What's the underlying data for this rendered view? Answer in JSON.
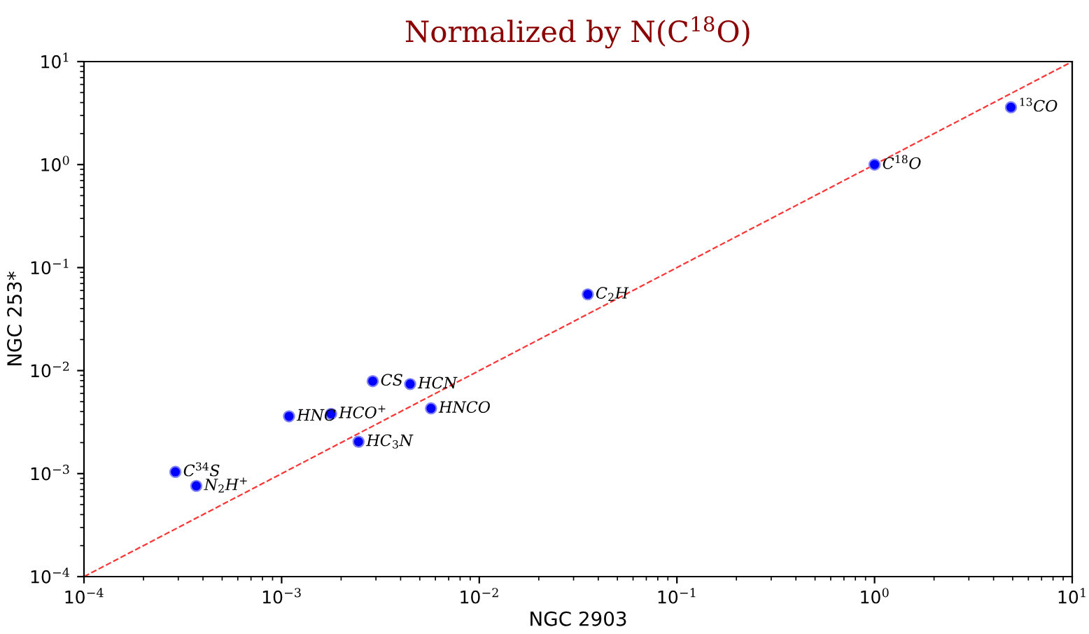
{
  "chart_data": {
    "type": "scatter",
    "title": "Normalized by N(C$^{18}$O)",
    "xlabel": "NGC 2903",
    "ylabel": "NGC 253*",
    "log": "xy",
    "grid": false,
    "legend": false,
    "xlim": [
      0.0001,
      10
    ],
    "ylim": [
      0.0001,
      10
    ],
    "xticks": [
      {
        "value": 0.0001,
        "label": "10$^{−4}$"
      },
      {
        "value": 0.001,
        "label": "10$^{−3}$"
      },
      {
        "value": 0.01,
        "label": "10$^{−2}$"
      },
      {
        "value": 0.1,
        "label": "10$^{−1}$"
      },
      {
        "value": 1,
        "label": "10$^{0}$"
      },
      {
        "value": 10,
        "label": "10$^{1}$"
      }
    ],
    "yticks": [
      {
        "value": 0.0001,
        "label": "10$^{−4}$"
      },
      {
        "value": 0.001,
        "label": "10$^{−3}$"
      },
      {
        "value": 0.01,
        "label": "10$^{−2}$"
      },
      {
        "value": 0.1,
        "label": "10$^{−1}$"
      },
      {
        "value": 1,
        "label": "10$^{0}$"
      },
      {
        "value": 10,
        "label": "10$^{1}$"
      }
    ],
    "series": [
      {
        "color": "#0000ff",
        "marker": "circle",
        "x": [
          4.9,
          1.0,
          0.0354,
          0.00289,
          0.00447,
          0.0057,
          0.00178,
          0.00109,
          0.00245,
          0.00029,
          0.00037
        ],
        "values": [
          3.6,
          1.0,
          0.055,
          0.0079,
          0.0074,
          0.0043,
          0.0038,
          0.0036,
          0.00204,
          0.00104,
          0.00076
        ]
      },
      {
        "type": "line",
        "color": "#ff0000",
        "line_style": "dashed",
        "marker": "none",
        "x": [
          0.0001,
          10
        ],
        "values": [
          0.0001,
          10
        ]
      }
    ],
    "annotations": [
      {
        "text": "$^{13}$CO",
        "x": 4.9,
        "y": 3.6
      },
      {
        "text": "C$^{18}$O",
        "x": 1.0,
        "y": 1.0
      },
      {
        "text": "C$_{2}$H",
        "x": 0.0354,
        "y": 0.055
      },
      {
        "text": "CS",
        "x": 0.00289,
        "y": 0.0079
      },
      {
        "text": "HCN",
        "x": 0.00447,
        "y": 0.0074
      },
      {
        "text": "HNCO",
        "x": 0.0057,
        "y": 0.0043
      },
      {
        "text": "HCO$^{+}$",
        "x": 0.00178,
        "y": 0.0038
      },
      {
        "text": "HNC",
        "x": 0.00109,
        "y": 0.0036
      },
      {
        "text": "HC$_{3}$N",
        "x": 0.00245,
        "y": 0.00204
      },
      {
        "text": "C$^{34}$S",
        "x": 0.00029,
        "y": 0.00104
      },
      {
        "text": "N$_{2}$H$^{+}$",
        "x": 0.00037,
        "y": 0.00076
      }
    ]
  }
}
